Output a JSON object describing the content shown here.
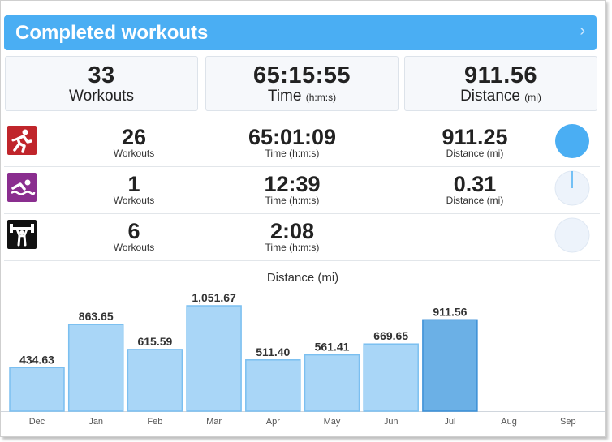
{
  "header": {
    "title": "Completed workouts",
    "chevron": "›"
  },
  "totals": [
    {
      "value": "33",
      "label": "Workouts",
      "unit": ""
    },
    {
      "value": "65:15:55",
      "label": "Time",
      "unit": "(h:m:s)"
    },
    {
      "value": "911.56",
      "label": "Distance",
      "unit": "(mi)"
    }
  ],
  "activities": [
    {
      "icon": "running-icon",
      "icon_color": "#c0252b",
      "workouts": "26",
      "workouts_label": "Workouts",
      "time": "65:01:09",
      "time_label": "Time (h:m:s)",
      "distance": "911.25",
      "distance_label": "Distance (mi)",
      "share": 1.0
    },
    {
      "icon": "swimming-icon",
      "icon_color": "#8a2e8f",
      "workouts": "1",
      "workouts_label": "Workouts",
      "time": "12:39",
      "time_label": "Time (h:m:s)",
      "distance": "0.31",
      "distance_label": "Distance (mi)",
      "share": 0.0003
    },
    {
      "icon": "weightlifting-icon",
      "icon_color": "#111111",
      "workouts": "6",
      "workouts_label": "Workouts",
      "time": "2:08",
      "time_label": "Time (h:m:s)",
      "distance": "",
      "distance_label": "",
      "share": 0
    }
  ],
  "colors": {
    "header": "#4aaef3",
    "bar": "#a9d6f7",
    "bar_border": "#7bbff0",
    "bar_current": "#6bb0e6",
    "bar_current_border": "#3b8fd6",
    "pie_fill": "#4aaef3",
    "pie_empty": "#edf3fb"
  },
  "chart_data": {
    "type": "bar",
    "title": "Distance (mi)",
    "categories": [
      "Dec",
      "Jan",
      "Feb",
      "Mar",
      "Apr",
      "May",
      "Jun",
      "Jul",
      "Aug",
      "Sep"
    ],
    "values": [
      434.63,
      863.65,
      615.59,
      1051.67,
      511.4,
      561.41,
      669.65,
      911.56,
      null,
      null
    ],
    "labels": [
      "434.63",
      "863.65",
      "615.59",
      "1,051.67",
      "511.40",
      "561.41",
      "669.65",
      "911.56",
      "",
      ""
    ],
    "highlight_index": 7,
    "ylim": [
      0,
      1051.67
    ]
  }
}
